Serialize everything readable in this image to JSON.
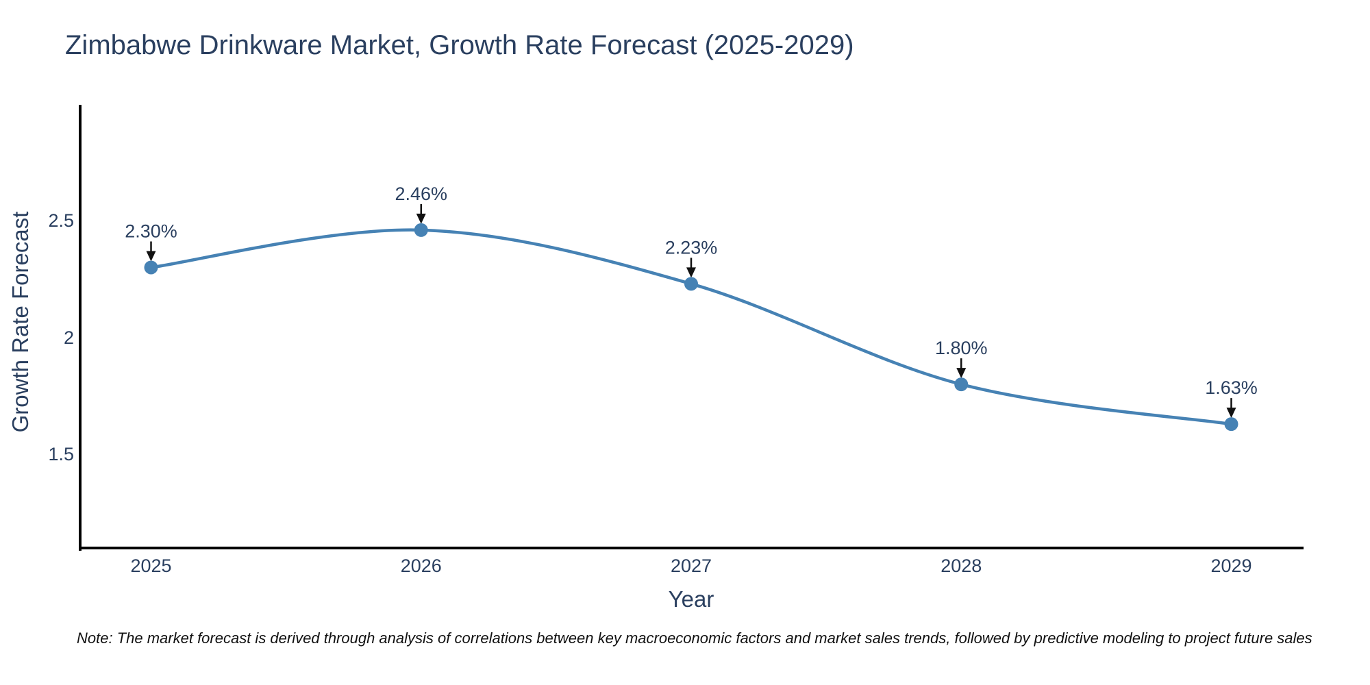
{
  "chart_data": {
    "type": "line",
    "title": "Zimbabwe Drinkware Market, Growth Rate Forecast (2025-2029)",
    "xlabel": "Year",
    "ylabel": "Growth Rate Forecast",
    "x": [
      2025,
      2026,
      2027,
      2028,
      2029
    ],
    "xtick_labels": [
      "2025",
      "2026",
      "2027",
      "2028",
      "2029"
    ],
    "series": [
      {
        "name": "Growth Rate Forecast",
        "values": [
          2.3,
          2.46,
          2.23,
          1.8,
          1.63
        ],
        "point_labels": [
          "2.30%",
          "2.46%",
          "2.23%",
          "1.80%",
          "1.63%"
        ]
      }
    ],
    "yticks": [
      2.5,
      2.0,
      1.5
    ],
    "ytick_labels": [
      "2.5",
      "2",
      "1.5"
    ],
    "xlim": [
      2024.74,
      2029.26
    ],
    "ylim": [
      1.1,
      2.99
    ],
    "line_shape": "spline",
    "grid": false,
    "legend_position": "none",
    "colors": {
      "line": "#4682b4",
      "marker": "#4682b4",
      "text": "#2a3f5f",
      "arrow": "#111111",
      "axis": "#000000",
      "background": "#ffffff"
    }
  },
  "note": {
    "text": "Note: The market forecast is derived through analysis of correlations between key macroeconomic factors and market sales trends, followed by predictive modeling to project future sales"
  }
}
